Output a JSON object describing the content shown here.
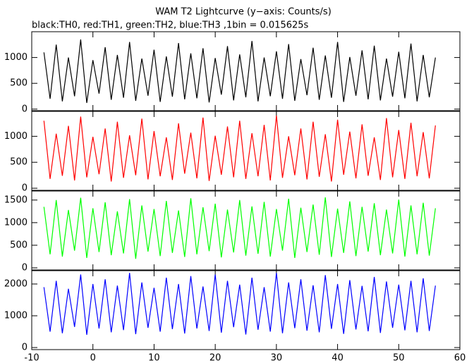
{
  "title": "WAM T2 Lightcurve (y−axis: Counts/s)",
  "subtitle": "black:TH0, red:TH1, green:TH2, blue:TH3 ,1bin = 0.015625s",
  "chart_data": [
    {
      "type": "line",
      "x": [
        -8,
        -7,
        -6,
        -5,
        -4,
        -3,
        -2,
        -1,
        0,
        1,
        2,
        3,
        4,
        5,
        6,
        7,
        8,
        9,
        10,
        11,
        12,
        13,
        14,
        15,
        16,
        17,
        18,
        19,
        20,
        21,
        22,
        23,
        24,
        25,
        26,
        27,
        28,
        29,
        30,
        31,
        32,
        33,
        34,
        35,
        36,
        37,
        38,
        39,
        40,
        41,
        42,
        43,
        44,
        45,
        46,
        47,
        48,
        49,
        50,
        51,
        52,
        53,
        54,
        55,
        56
      ],
      "series": [
        {
          "color": "#000000",
          "values": [
            1100,
            200,
            1250,
            150,
            1000,
            250,
            1350,
            120,
            950,
            300,
            1200,
            180,
            1050,
            220,
            1300,
            160,
            980,
            260,
            1150,
            140,
            1020,
            240,
            1280,
            190,
            1080,
            210,
            1180,
            130,
            990,
            280,
            1220,
            170,
            1060,
            230,
            1320,
            150,
            1000,
            250,
            1120,
            200,
            1260,
            160,
            970,
            270,
            1190,
            180,
            1040,
            220,
            1300,
            140,
            1010,
            260,
            1140,
            190,
            1230,
            170,
            980,
            240,
            1110,
            210,
            1270,
            150,
            1050,
            230,
            1000
          ]
        }
      ],
      "xlim": [
        -10,
        60
      ],
      "ylim": [
        -30,
        1500
      ],
      "yticks": [
        0,
        500,
        1000
      ]
    },
    {
      "type": "line",
      "x": [
        -8,
        -7,
        -6,
        -5,
        -4,
        -3,
        -2,
        -1,
        0,
        1,
        2,
        3,
        4,
        5,
        6,
        7,
        8,
        9,
        10,
        11,
        12,
        13,
        14,
        15,
        16,
        17,
        18,
        19,
        20,
        21,
        22,
        23,
        24,
        25,
        26,
        27,
        28,
        29,
        30,
        31,
        32,
        33,
        34,
        35,
        36,
        37,
        38,
        39,
        40,
        41,
        42,
        43,
        44,
        45,
        46,
        47,
        48,
        49,
        50,
        51,
        52,
        53,
        54,
        55,
        56
      ],
      "series": [
        {
          "color": "#ff0000",
          "values": [
            1300,
            180,
            1050,
            240,
            1200,
            150,
            1380,
            210,
            990,
            270,
            1150,
            130,
            1280,
            200,
            1020,
            250,
            1340,
            170,
            1100,
            230,
            980,
            160,
            1250,
            280,
            1070,
            190,
            1360,
            140,
            1010,
            260,
            1190,
            210,
            1300,
            180,
            1060,
            230,
            1220,
            150,
            1400,
            200,
            1000,
            250,
            1150,
            170,
            1280,
            220,
            1040,
            130,
            1320,
            260,
            1090,
            190,
            1230,
            240,
            980,
            160,
            1350,
            210,
            1120,
            180,
            1260,
            230,
            1080,
            190,
            1210
          ]
        }
      ],
      "xlim": [
        -10,
        60
      ],
      "ylim": [
        -40,
        1480
      ],
      "yticks": [
        0,
        500,
        1000
      ]
    },
    {
      "type": "line",
      "x": [
        -8,
        -7,
        -6,
        -5,
        -4,
        -3,
        -2,
        -1,
        0,
        1,
        2,
        3,
        4,
        5,
        6,
        7,
        8,
        9,
        10,
        11,
        12,
        13,
        14,
        15,
        16,
        17,
        18,
        19,
        20,
        21,
        22,
        23,
        24,
        25,
        26,
        27,
        28,
        29,
        30,
        31,
        32,
        33,
        34,
        35,
        36,
        37,
        38,
        39,
        40,
        41,
        42,
        43,
        44,
        45,
        46,
        47,
        48,
        49,
        50,
        51,
        52,
        53,
        54,
        55,
        56
      ],
      "series": [
        {
          "color": "#00ff00",
          "values": [
            1350,
            300,
            1500,
            250,
            1280,
            380,
            1550,
            220,
            1320,
            350,
            1450,
            280,
            1250,
            320,
            1520,
            200,
            1380,
            360,
            1300,
            260,
            1480,
            330,
            1270,
            240,
            1540,
            300,
            1340,
            370,
            1420,
            230,
            1290,
            340,
            1500,
            270,
            1360,
            310,
            1460,
            250,
            1300,
            380,
            1530,
            220,
            1330,
            350,
            1400,
            290,
            1560,
            240,
            1310,
            330,
            1470,
            260,
            1350,
            360,
            1430,
            280,
            1290,
            320,
            1510,
            250,
            1380,
            300,
            1440,
            270,
            1320
          ]
        }
      ],
      "xlim": [
        -10,
        60
      ],
      "ylim": [
        -47,
        1700
      ],
      "yticks": [
        0,
        500,
        1000,
        1500
      ]
    },
    {
      "type": "line",
      "x": [
        -8,
        -7,
        -6,
        -5,
        -4,
        -3,
        -2,
        -1,
        0,
        1,
        2,
        3,
        4,
        5,
        6,
        7,
        8,
        9,
        10,
        11,
        12,
        13,
        14,
        15,
        16,
        17,
        18,
        19,
        20,
        21,
        22,
        23,
        24,
        25,
        26,
        27,
        28,
        29,
        30,
        31,
        32,
        33,
        34,
        35,
        36,
        37,
        38,
        39,
        40,
        41,
        42,
        43,
        44,
        45,
        46,
        47,
        48,
        49,
        50,
        51,
        52,
        53,
        54,
        55,
        56
      ],
      "series": [
        {
          "color": "#0000ff",
          "values": [
            1900,
            500,
            2100,
            450,
            1850,
            650,
            2300,
            400,
            2000,
            600,
            2150,
            480,
            1950,
            550,
            2350,
            420,
            2050,
            620,
            1880,
            500,
            2200,
            580,
            2000,
            440,
            2250,
            600,
            1920,
            520,
            2300,
            470,
            2100,
            640,
            1980,
            410,
            2200,
            560,
            1900,
            500,
            2350,
            450,
            2050,
            610,
            2150,
            530,
            1960,
            480,
            2280,
            590,
            2000,
            430,
            2120,
            570,
            1940,
            510,
            2220,
            460,
            2080,
            620,
            1980,
            540,
            2100,
            480,
            2180,
            520,
            1950
          ]
        }
      ],
      "xlim": [
        -10,
        60
      ],
      "ylim": [
        -65,
        2420
      ],
      "yticks": [
        0,
        1000,
        2000
      ],
      "xticks": [
        -10,
        0,
        10,
        20,
        30,
        40,
        50,
        60
      ]
    }
  ]
}
